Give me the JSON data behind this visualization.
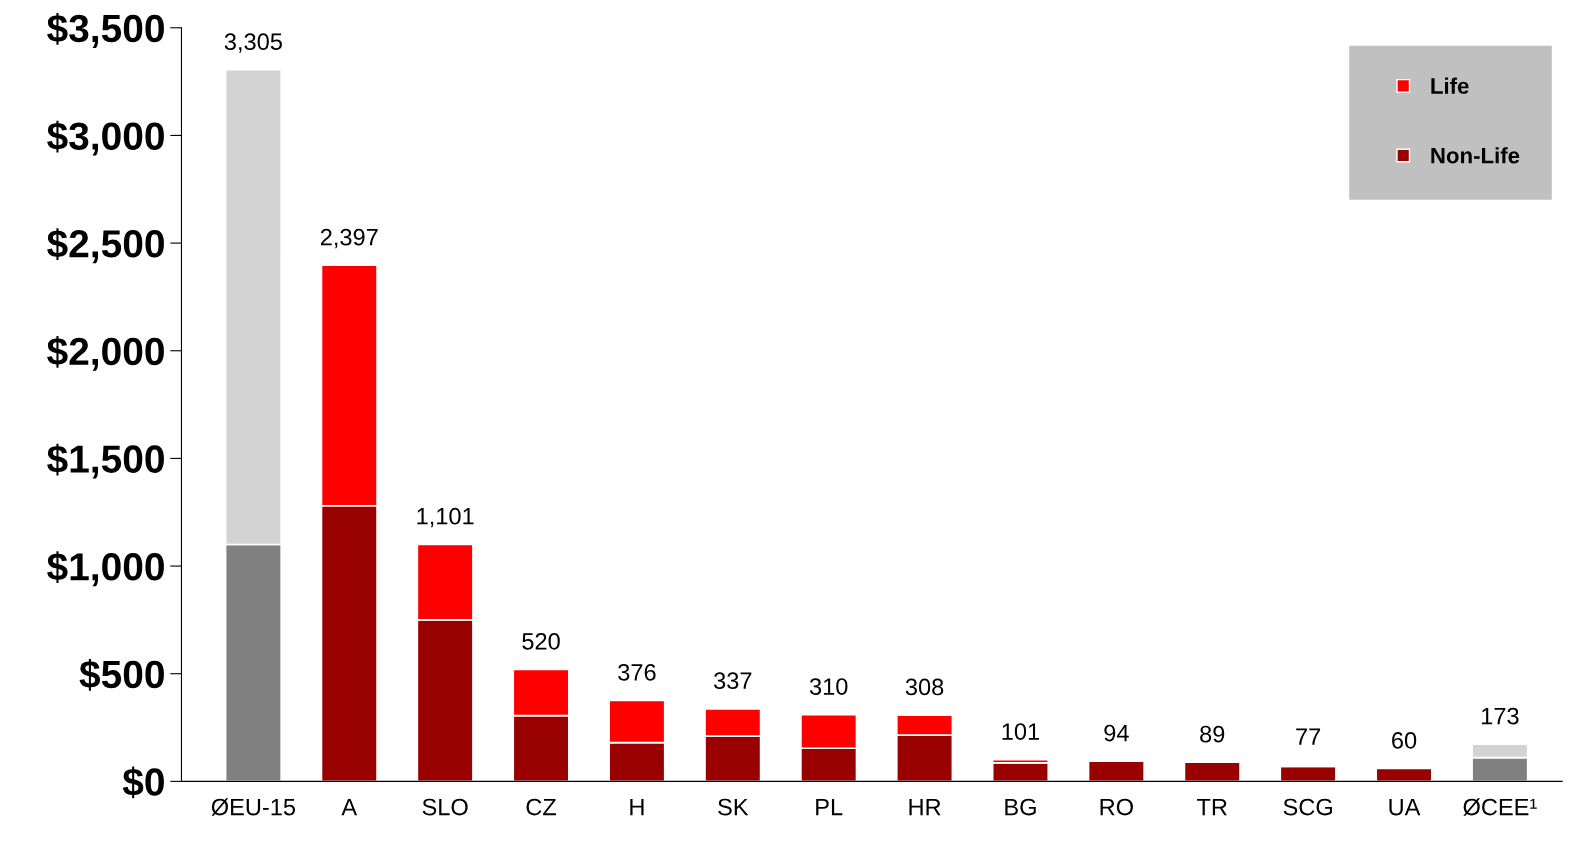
{
  "chart_data": {
    "type": "bar",
    "stacked": true,
    "categories": [
      "ØEU-15",
      "A",
      "SLO",
      "CZ",
      "H",
      "SK",
      "PL",
      "HR",
      "BG",
      "RO",
      "TR",
      "SCG",
      "UA",
      "ØCEE¹"
    ],
    "series": [
      {
        "name": "Non-Life",
        "color": "#990000",
        "colors": [
          "#808080",
          "#990000",
          "#990000",
          "#990000",
          "#990000",
          "#990000",
          "#990000",
          "#990000",
          "#990000",
          "#990000",
          "#990000",
          "#990000",
          "#990000",
          "#808080"
        ],
        "values": [
          1100,
          1280,
          750,
          305,
          180,
          210,
          154,
          215,
          86,
          94,
          89,
          70,
          60,
          110
        ]
      },
      {
        "name": "Life",
        "color": "#ff0000",
        "colors": [
          "#d3d3d3",
          "#ff0000",
          "#ff0000",
          "#ff0000",
          "#ff0000",
          "#ff0000",
          "#ff0000",
          "#ff0000",
          "#ff0000",
          "#ff0000",
          "#ff0000",
          "#ff0000",
          "#ff0000",
          "#d3d3d3"
        ],
        "values": [
          2205,
          1117,
          351,
          215,
          196,
          127,
          156,
          93,
          15,
          null,
          null,
          7,
          null,
          63
        ]
      }
    ],
    "totals": [
      "3,305",
      "2,397",
      "1,101",
      "520",
      "376",
      "337",
      "310",
      "308",
      "101",
      "94",
      "89",
      "77",
      "60",
      "173"
    ],
    "ylim": [
      0,
      3500
    ],
    "yticks": [
      {
        "value": 0,
        "label": "$0"
      },
      {
        "value": 500,
        "label": "$500"
      },
      {
        "value": 1000,
        "label": "$1,000"
      },
      {
        "value": 1500,
        "label": "$1,500"
      },
      {
        "value": 2000,
        "label": "$2,000"
      },
      {
        "value": 2500,
        "label": "$2,500"
      },
      {
        "value": 3000,
        "label": "$3,000"
      },
      {
        "value": 3500,
        "label": "$3,500"
      }
    ],
    "grid": false,
    "legend": "top right"
  }
}
